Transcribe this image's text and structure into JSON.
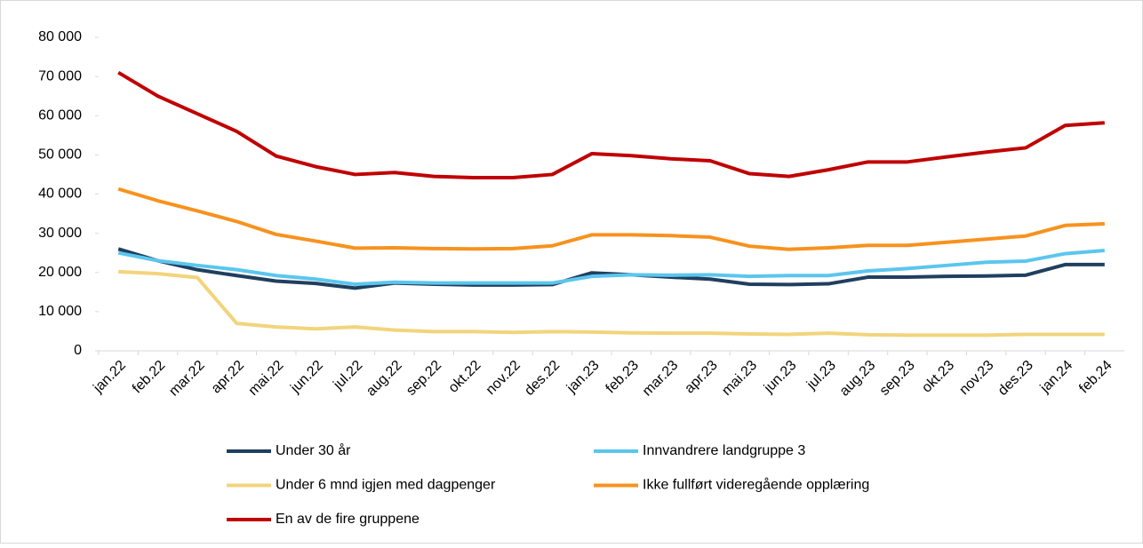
{
  "chart_data": {
    "type": "line",
    "categories": [
      "jan.22",
      "feb.22",
      "mar.22",
      "apr.22",
      "mai.22",
      "jun.22",
      "jul.22",
      "aug.22",
      "sep.22",
      "okt.22",
      "nov.22",
      "des.22",
      "jan.23",
      "feb.23",
      "mar.23",
      "apr.23",
      "mai.23",
      "jun.23",
      "jul.23",
      "aug.23",
      "sep.23",
      "okt.23",
      "nov.23",
      "des.23",
      "jan.24",
      "feb.24"
    ],
    "series": [
      {
        "name": "Under 30 år",
        "color": "#203f5f",
        "values": [
          26000,
          23000,
          20700,
          19200,
          17800,
          17200,
          16000,
          17300,
          17000,
          16800,
          16800,
          16900,
          19900,
          19400,
          18800,
          18300,
          17000,
          16900,
          17100,
          18800,
          18800,
          19000,
          19100,
          19300,
          22000,
          22000
        ]
      },
      {
        "name": "Innvandrere landgruppe 3",
        "color": "#5bc6ee",
        "values": [
          25000,
          23000,
          21800,
          20700,
          19200,
          18300,
          17000,
          17500,
          17300,
          17300,
          17300,
          17300,
          19000,
          19400,
          19300,
          19400,
          19000,
          19200,
          19200,
          20400,
          21000,
          21800,
          22600,
          22900,
          24800,
          25600
        ]
      },
      {
        "name": "Under 6 mnd igjen med dagpenger",
        "color": "#f2d47c",
        "values": [
          20200,
          19700,
          18700,
          7000,
          6100,
          5600,
          6100,
          5300,
          4900,
          4900,
          4700,
          4900,
          4800,
          4600,
          4500,
          4500,
          4300,
          4200,
          4500,
          4100,
          4000,
          4000,
          4000,
          4200,
          4200,
          4200
        ]
      },
      {
        "name": "Ikke fullført videregående opplæring",
        "color": "#f7921e",
        "values": [
          41300,
          38300,
          35700,
          33000,
          29700,
          28000,
          26200,
          26300,
          26100,
          26000,
          26100,
          26800,
          29600,
          29600,
          29400,
          29000,
          26700,
          25900,
          26300,
          26900,
          26900,
          27700,
          28500,
          29300,
          32000,
          32400
        ]
      },
      {
        "name": "En av de fire gruppene",
        "color": "#c00000",
        "values": [
          71000,
          65000,
          60500,
          56000,
          49700,
          47000,
          45000,
          45500,
          44500,
          44200,
          44200,
          45000,
          50300,
          49800,
          49000,
          48500,
          45200,
          44500,
          46200,
          48200,
          48200,
          49500,
          50700,
          51800,
          57500,
          58200
        ]
      }
    ],
    "ylim": [
      0,
      80000
    ],
    "yticks": [
      0,
      {
        "value": 10000,
        "label": "10 000"
      },
      {
        "value": 20000,
        "label": "20 000"
      },
      {
        "value": 30000,
        "label": "30 000"
      },
      {
        "value": 40000,
        "label": "40 000"
      },
      {
        "value": 50000,
        "label": "50 000"
      },
      {
        "value": 60000,
        "label": "60 000"
      },
      {
        "value": 70000,
        "label": "70 000"
      },
      {
        "value": 80000,
        "label": "80 000"
      }
    ],
    "legend": "bottom"
  }
}
